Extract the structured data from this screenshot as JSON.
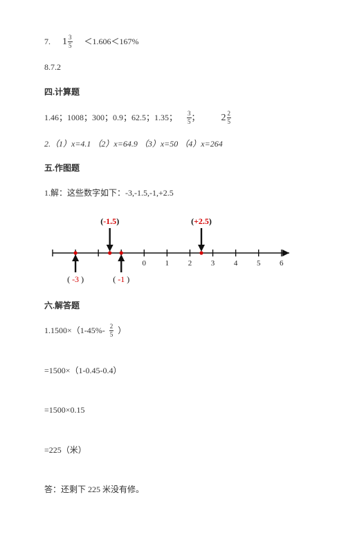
{
  "q7": {
    "prefix": "7.",
    "frac_int": "1",
    "frac_num": "3",
    "frac_den": "5",
    "tail": "＜1.606＜167%"
  },
  "q8": {
    "text": "8.7.2"
  },
  "sec4": {
    "title": "四.计算题"
  },
  "s4_l1": {
    "head": "1.46；1008；300；0.9；62.5；1.35；",
    "f1_num": "3",
    "f1_den": "5",
    "sep": "；",
    "f2_int": "2",
    "f2_num": "2",
    "f2_den": "5"
  },
  "s4_l2": {
    "text": "2.（1）x=4.1 （2）x=64.9 （3）x=50 （4）x=264"
  },
  "sec5": {
    "title": "五.作图题"
  },
  "s5_l1": {
    "text": "1.解：这些数字如下：-3,-1.5,-1,+2.5"
  },
  "number_line": {
    "min": -4,
    "max": 6.4,
    "ticks": [
      -4,
      -3,
      -2,
      -1,
      0,
      1,
      2,
      3,
      4,
      5,
      6
    ],
    "tick_labels": [
      "",
      "",
      "",
      "",
      "0",
      "1",
      "2",
      "3",
      "4",
      "5",
      "6"
    ],
    "points": [
      {
        "x": -3,
        "color": "#d40000"
      },
      {
        "x": -1.5,
        "color": "#d40000"
      },
      {
        "x": -1,
        "color": "#d40000"
      },
      {
        "x": 2.5,
        "color": "#d40000"
      }
    ],
    "top_labels": [
      {
        "x": -1.5,
        "text": "(-1.5)",
        "paren_color": "#111",
        "num_color": "#d40000"
      },
      {
        "x": 2.5,
        "text": "(+2.5)",
        "paren_color": "#111",
        "num_color": "#d40000"
      }
    ],
    "bottom_labels": [
      {
        "x": -3,
        "text": "( -3 )",
        "paren_color": "#111",
        "num_color": "#d40000"
      },
      {
        "x": -1,
        "text": "( -1 )",
        "paren_color": "#111",
        "num_color": "#d40000"
      }
    ],
    "arrow_color": "#111",
    "axis_color": "#111",
    "tick_font": 11,
    "label_font": 12
  },
  "sec6": {
    "title": "六.解答题"
  },
  "s6_l1": {
    "head": "1.1500×（1-45%-",
    "f_num": "2",
    "f_den": "5",
    "tail": "）"
  },
  "s6_l2": {
    "text": "=1500×（1-0.45-0.4）"
  },
  "s6_l3": {
    "text": "=1500×0.15"
  },
  "s6_l4": {
    "text": "=225（米）"
  },
  "s6_ans": {
    "text": "答：还剩下 225 米没有修。"
  }
}
